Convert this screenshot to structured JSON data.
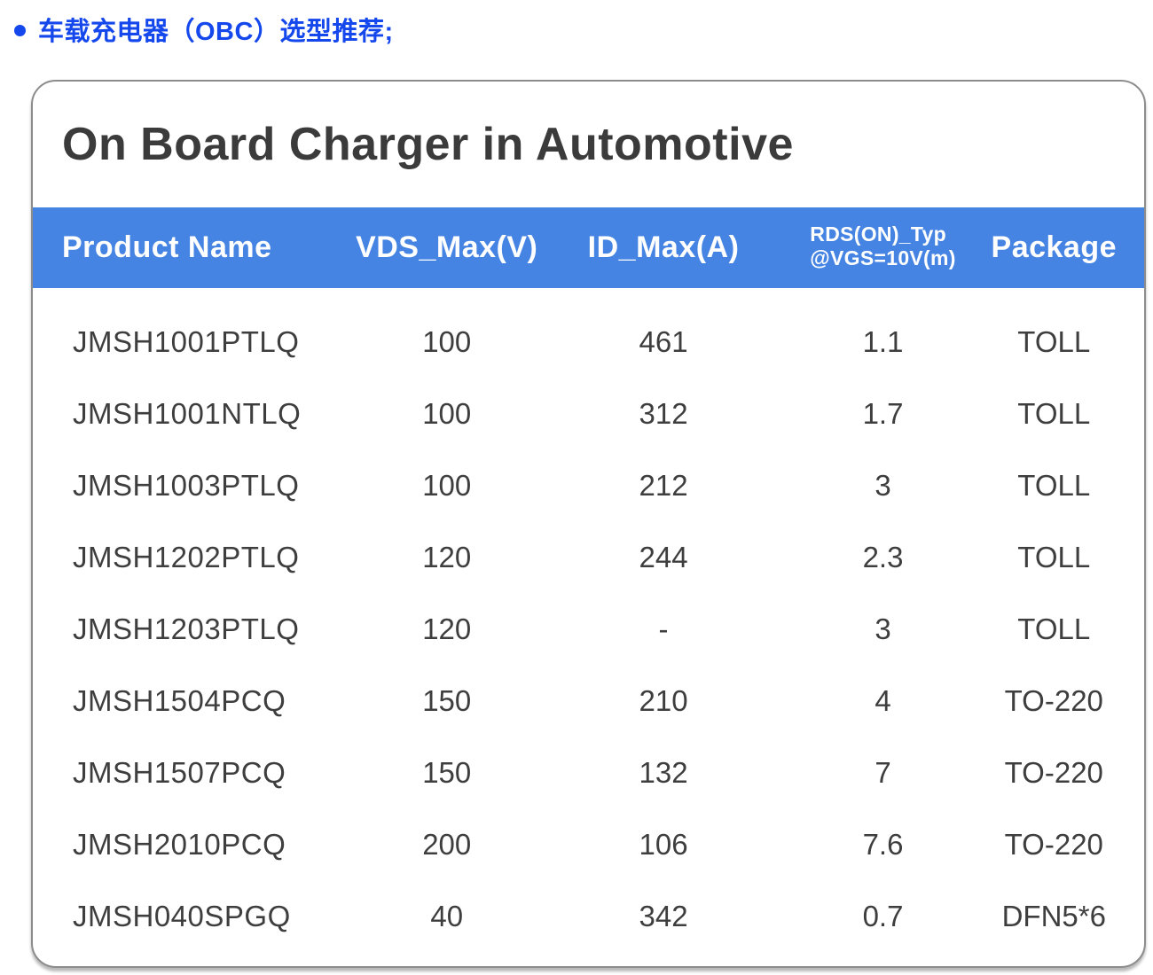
{
  "colors": {
    "heading_color": "#1447ec",
    "header_bg": "#4684e3"
  },
  "page": {
    "heading": "车载充电器（OBC）选型推荐;"
  },
  "card": {
    "title": "On Board Charger in Automotive",
    "columns": [
      {
        "label": "Product Name"
      },
      {
        "label": "VDS_Max(V)"
      },
      {
        "label": "ID_Max(A)"
      },
      {
        "label": "RDS(ON)_Typ",
        "label_line2": "@VGS=10V(m)"
      },
      {
        "label": "Package"
      }
    ],
    "rows": [
      [
        "JMSH1001PTLQ",
        "100",
        "461",
        "1.1",
        "TOLL"
      ],
      [
        "JMSH1001NTLQ",
        "100",
        "312",
        "1.7",
        "TOLL"
      ],
      [
        "JMSH1003PTLQ",
        "100",
        "212",
        "3",
        "TOLL"
      ],
      [
        "JMSH1202PTLQ",
        "120",
        "244",
        "2.3",
        "TOLL"
      ],
      [
        "JMSH1203PTLQ",
        "120",
        "-",
        "3",
        "TOLL"
      ],
      [
        "JMSH1504PCQ",
        "150",
        "210",
        "4",
        "TO-220"
      ],
      [
        "JMSH1507PCQ",
        "150",
        "132",
        "7",
        "TO-220"
      ],
      [
        "JMSH2010PCQ",
        "200",
        "106",
        "7.6",
        "TO-220"
      ],
      [
        "JMSH040SPGQ",
        "40",
        "342",
        "0.7",
        "DFN5*6"
      ]
    ]
  }
}
